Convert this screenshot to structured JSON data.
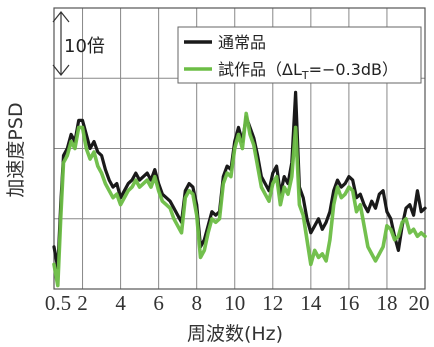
{
  "chart_data": {
    "type": "line",
    "xlabel": "周波数(Hz)",
    "ylabel": "加速度PSD",
    "xlim": [
      0.5,
      20
    ],
    "x_ticks": [
      {
        "value": 0.5,
        "label": "0.5"
      },
      {
        "value": 2,
        "label": "2"
      },
      {
        "value": 4,
        "label": "4"
      },
      {
        "value": 6,
        "label": "6"
      },
      {
        "value": 8,
        "label": "8"
      },
      {
        "value": 10,
        "label": "10"
      },
      {
        "value": 12,
        "label": "12"
      },
      {
        "value": 14,
        "label": "14"
      },
      {
        "value": 16,
        "label": "16"
      },
      {
        "value": 18,
        "label": "18"
      },
      {
        "value": 20,
        "label": "20"
      }
    ],
    "y_scale": "log",
    "ylim_decades": [
      0,
      4
    ],
    "grid": true,
    "scale_annotation": "10倍",
    "legend": {
      "placement": "top-right",
      "entries": [
        {
          "series": 0,
          "label": "通常品"
        },
        {
          "series": 1,
          "label": "試作品（ΔL",
          "subscript": "T",
          "suffix": "=−0.3dB）"
        }
      ]
    },
    "series": [
      {
        "name": "通常品",
        "color": "#1a1a1a",
        "x": [
          0.5,
          0.7,
          0.85,
          1.0,
          1.2,
          1.4,
          1.6,
          1.8,
          2.0,
          2.2,
          2.4,
          2.6,
          2.8,
          3.0,
          3.2,
          3.4,
          3.6,
          3.8,
          4.0,
          4.2,
          4.4,
          4.6,
          4.8,
          5.0,
          5.2,
          5.4,
          5.6,
          5.8,
          6.0,
          6.2,
          6.4,
          6.6,
          6.8,
          7.0,
          7.2,
          7.4,
          7.6,
          7.8,
          8.0,
          8.2,
          8.4,
          8.6,
          8.8,
          9.0,
          9.2,
          9.4,
          9.6,
          9.8,
          10.0,
          10.2,
          10.4,
          10.6,
          10.8,
          11.0,
          11.2,
          11.4,
          11.6,
          11.8,
          12.0,
          12.2,
          12.4,
          12.6,
          12.8,
          13.0,
          13.2,
          13.4,
          13.6,
          13.8,
          14.0,
          14.2,
          14.4,
          14.6,
          14.8,
          15.0,
          15.2,
          15.4,
          15.6,
          15.8,
          16.0,
          16.2,
          16.4,
          16.6,
          16.8,
          17.0,
          17.2,
          17.4,
          17.6,
          17.8,
          18.0,
          18.2,
          18.4,
          18.6,
          18.8,
          19.0,
          19.2,
          19.4,
          19.6,
          19.8,
          20.0
        ],
        "y": [
          0.6,
          0.3,
          1.2,
          1.9,
          2.0,
          2.2,
          2.1,
          2.4,
          2.4,
          2.2,
          2.0,
          2.1,
          1.95,
          1.9,
          1.7,
          1.55,
          1.45,
          1.5,
          1.3,
          1.4,
          1.5,
          1.55,
          1.65,
          1.55,
          1.6,
          1.65,
          1.55,
          1.7,
          1.5,
          1.35,
          1.3,
          1.25,
          1.15,
          1.05,
          0.95,
          1.4,
          1.5,
          1.45,
          1.2,
          0.6,
          0.7,
          0.9,
          1.1,
          1.05,
          1.1,
          1.6,
          1.75,
          1.7,
          2.1,
          2.3,
          2.1,
          2.45,
          2.3,
          2.15,
          1.9,
          1.6,
          1.5,
          1.4,
          1.65,
          1.75,
          1.35,
          1.6,
          1.5,
          1.8,
          2.8,
          1.45,
          1.3,
          1.0,
          0.8,
          0.9,
          1.0,
          0.85,
          0.95,
          1.1,
          1.4,
          1.55,
          1.45,
          1.5,
          1.6,
          1.55,
          1.3,
          1.35,
          1.2,
          1.1,
          1.25,
          1.15,
          1.35,
          1.4,
          1.1,
          1.0,
          0.75,
          0.55,
          0.9,
          1.15,
          1.2,
          1.05,
          1.4,
          1.1,
          1.15
        ]
      },
      {
        "name": "試作品（ΔLT=−0.3dB）",
        "color": "#6cbd45",
        "x": [
          0.5,
          0.7,
          0.85,
          1.0,
          1.2,
          1.4,
          1.6,
          1.8,
          2.0,
          2.2,
          2.4,
          2.6,
          2.8,
          3.0,
          3.2,
          3.4,
          3.6,
          3.8,
          4.0,
          4.2,
          4.4,
          4.6,
          4.8,
          5.0,
          5.2,
          5.4,
          5.6,
          5.8,
          6.0,
          6.2,
          6.4,
          6.6,
          6.8,
          7.0,
          7.2,
          7.4,
          7.6,
          7.8,
          8.0,
          8.2,
          8.4,
          8.6,
          8.8,
          9.0,
          9.2,
          9.4,
          9.6,
          9.8,
          10.0,
          10.2,
          10.4,
          10.6,
          10.8,
          11.0,
          11.2,
          11.4,
          11.6,
          11.8,
          12.0,
          12.2,
          12.4,
          12.6,
          12.8,
          13.0,
          13.2,
          13.4,
          13.6,
          13.8,
          14.0,
          14.2,
          14.4,
          14.6,
          14.8,
          15.0,
          15.2,
          15.4,
          15.6,
          15.8,
          16.0,
          16.2,
          16.4,
          16.6,
          16.8,
          17.0,
          17.2,
          17.4,
          17.6,
          17.8,
          18.0,
          18.2,
          18.4,
          18.6,
          18.8,
          19.0,
          19.2,
          19.4,
          19.6,
          19.8,
          20.0
        ],
        "y": [
          0.35,
          0.05,
          1.0,
          1.8,
          1.9,
          2.1,
          2.0,
          2.3,
          2.3,
          2.0,
          1.85,
          1.95,
          1.75,
          1.65,
          1.5,
          1.4,
          1.3,
          1.35,
          1.2,
          1.3,
          1.4,
          1.45,
          1.55,
          1.45,
          1.5,
          1.55,
          1.45,
          1.6,
          1.4,
          1.25,
          1.2,
          1.15,
          1.0,
          0.9,
          0.8,
          1.3,
          1.4,
          1.35,
          1.05,
          0.45,
          0.55,
          0.8,
          1.0,
          0.95,
          1.0,
          1.5,
          1.65,
          1.6,
          2.0,
          2.2,
          2.0,
          2.5,
          2.2,
          2.05,
          1.75,
          1.45,
          1.35,
          1.25,
          1.5,
          1.6,
          1.2,
          1.45,
          1.35,
          1.6,
          2.3,
          1.2,
          1.05,
          0.7,
          0.35,
          0.55,
          0.45,
          0.5,
          0.4,
          0.7,
          1.2,
          1.45,
          1.3,
          1.35,
          1.45,
          1.4,
          1.1,
          1.2,
          0.9,
          0.6,
          0.5,
          0.4,
          0.5,
          0.6,
          0.9,
          0.85,
          0.7,
          0.75,
          0.95,
          1.0,
          0.8,
          0.85,
          0.75,
          0.8,
          0.75
        ]
      }
    ]
  }
}
